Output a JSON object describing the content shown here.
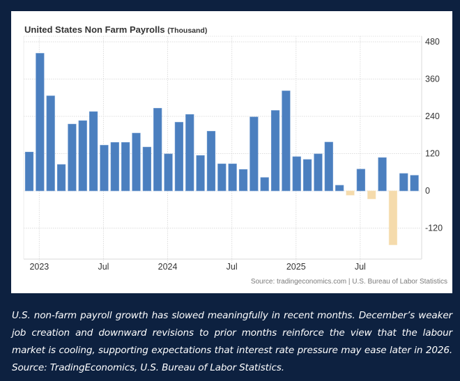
{
  "colors": {
    "positive": "#4b7fbf",
    "negative": "#f5dbac",
    "background": "#0d2140",
    "panel": "#ffffff"
  },
  "chart_data": {
    "type": "bar",
    "title": "United States Non Farm Payrolls",
    "unit": "(Thousand)",
    "xlabel": "",
    "ylabel": "",
    "ylim": [
      -180,
      480
    ],
    "yticks": [
      480,
      360,
      240,
      120,
      0,
      -120
    ],
    "y_axis_side": "right",
    "grid": true,
    "x_tick_labels": [
      {
        "label": "2023",
        "month": "Jan 2023"
      },
      {
        "label": "Jul",
        "month": "Jul 2023"
      },
      {
        "label": "2024",
        "month": "Jan 2024"
      },
      {
        "label": "Jul",
        "month": "Jul 2024"
      },
      {
        "label": "2025",
        "month": "Jan 2025"
      },
      {
        "label": "Jul",
        "month": "Jul 2025"
      }
    ],
    "categories": [
      "Dec 2022",
      "Jan 2023",
      "Feb 2023",
      "Mar 2023",
      "Apr 2023",
      "May 2023",
      "Jun 2023",
      "Jul 2023",
      "Aug 2023",
      "Sep 2023",
      "Oct 2023",
      "Nov 2023",
      "Dec 2023",
      "Jan 2024",
      "Feb 2024",
      "Mar 2024",
      "Apr 2024",
      "May 2024",
      "Jun 2024",
      "Jul 2024",
      "Aug 2024",
      "Sep 2024",
      "Oct 2024",
      "Nov 2024",
      "Dec 2024",
      "Jan 2025",
      "Feb 2025",
      "Mar 2025",
      "Apr 2025",
      "May 2025",
      "Jun 2025",
      "Jul 2025",
      "Aug 2025",
      "Sep 2025",
      "Oct 2025",
      "Nov 2025",
      "Dec 2025"
    ],
    "values": [
      125,
      443,
      306,
      85,
      215,
      226,
      255,
      147,
      156,
      156,
      186,
      141,
      266,
      119,
      221,
      246,
      114,
      192,
      87,
      87,
      69,
      238,
      43,
      259,
      322,
      110,
      101,
      119,
      157,
      18,
      -14,
      70,
      -26,
      107,
      -174,
      56,
      50
    ],
    "source": "Source: tradingeconomics.com | U.S. Bureau of Labor Statistics"
  },
  "caption": "U.S. non-farm payroll growth has slowed meaningfully in recent months. December’s weaker job creation and downward revisions to prior months reinforce the view that the labour market is cooling, supporting expectations that interest rate pressure may ease later in 2026. Source: TradingEconomics, U.S. Bureau of Labor Statistics."
}
